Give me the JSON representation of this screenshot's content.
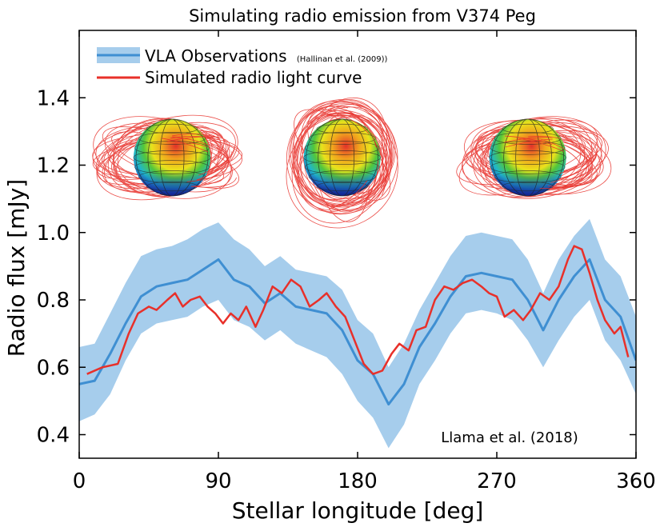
{
  "chart_data": {
    "type": "line",
    "title": "Simulating radio emission from V374 Peg",
    "xlabel": "Stellar longitude [deg]",
    "ylabel": "Radio flux [mJy]",
    "xlim": [
      0,
      360
    ],
    "ylim": [
      0.33,
      1.6
    ],
    "xticks": [
      0,
      90,
      180,
      270,
      360
    ],
    "yticks": [
      0.4,
      0.6,
      0.8,
      1.0,
      1.2,
      1.4
    ],
    "grid": false,
    "legend_position": "top-left",
    "annotation": "Llama et al. (2018)",
    "series": [
      {
        "name": "VLA Observations",
        "name_suffix": "(Hallinan et al. (2009))",
        "color": "#3f8fd2",
        "band_color": "#a6cdec",
        "x": [
          0,
          10,
          20,
          30,
          40,
          50,
          60,
          70,
          80,
          90,
          100,
          110,
          120,
          130,
          140,
          150,
          160,
          170,
          180,
          190,
          200,
          210,
          220,
          230,
          240,
          250,
          260,
          270,
          280,
          290,
          300,
          310,
          320,
          330,
          340,
          350,
          360
        ],
        "values": [
          0.55,
          0.56,
          0.64,
          0.73,
          0.81,
          0.84,
          0.85,
          0.86,
          0.89,
          0.92,
          0.86,
          0.84,
          0.79,
          0.82,
          0.78,
          0.77,
          0.76,
          0.71,
          0.62,
          0.58,
          0.49,
          0.55,
          0.66,
          0.73,
          0.81,
          0.87,
          0.88,
          0.87,
          0.86,
          0.8,
          0.71,
          0.8,
          0.87,
          0.92,
          0.8,
          0.75,
          0.62
        ],
        "lower": [
          0.44,
          0.46,
          0.52,
          0.62,
          0.7,
          0.73,
          0.74,
          0.75,
          0.78,
          0.8,
          0.74,
          0.72,
          0.68,
          0.71,
          0.67,
          0.65,
          0.63,
          0.58,
          0.5,
          0.45,
          0.36,
          0.43,
          0.55,
          0.62,
          0.7,
          0.76,
          0.77,
          0.76,
          0.74,
          0.68,
          0.6,
          0.68,
          0.75,
          0.8,
          0.68,
          0.62,
          0.52
        ],
        "upper": [
          0.66,
          0.67,
          0.76,
          0.85,
          0.93,
          0.95,
          0.96,
          0.98,
          1.01,
          1.03,
          0.98,
          0.95,
          0.9,
          0.93,
          0.89,
          0.88,
          0.87,
          0.83,
          0.74,
          0.7,
          0.6,
          0.67,
          0.77,
          0.85,
          0.93,
          0.99,
          1.0,
          0.99,
          0.98,
          0.92,
          0.82,
          0.92,
          0.99,
          1.04,
          0.92,
          0.87,
          0.75
        ]
      },
      {
        "name": "Simulated radio light curve",
        "color": "#e8302a",
        "x": [
          5,
          15,
          25,
          32,
          38,
          45,
          50,
          57,
          62,
          67,
          72,
          78,
          83,
          88,
          93,
          98,
          103,
          108,
          114,
          119,
          125,
          131,
          137,
          143,
          149,
          155,
          160,
          166,
          172,
          178,
          184,
          190,
          196,
          202,
          207,
          213,
          218,
          224,
          230,
          236,
          242,
          248,
          254,
          260,
          265,
          270,
          275,
          281,
          287,
          292,
          298,
          304,
          310,
          316,
          320,
          325,
          330,
          335,
          340,
          346,
          350,
          355
        ],
        "values": [
          0.58,
          0.6,
          0.61,
          0.7,
          0.76,
          0.78,
          0.77,
          0.8,
          0.82,
          0.78,
          0.8,
          0.81,
          0.78,
          0.76,
          0.73,
          0.76,
          0.74,
          0.78,
          0.72,
          0.77,
          0.84,
          0.82,
          0.86,
          0.84,
          0.78,
          0.8,
          0.82,
          0.78,
          0.75,
          0.68,
          0.61,
          0.58,
          0.59,
          0.64,
          0.67,
          0.65,
          0.71,
          0.72,
          0.8,
          0.84,
          0.83,
          0.85,
          0.86,
          0.84,
          0.82,
          0.81,
          0.75,
          0.77,
          0.74,
          0.77,
          0.82,
          0.8,
          0.84,
          0.92,
          0.96,
          0.95,
          0.88,
          0.8,
          0.74,
          0.7,
          0.72,
          0.63
        ]
      }
    ],
    "insets": [
      {
        "type": "stellar-magnetic-field-model",
        "longitude": 60
      },
      {
        "type": "stellar-magnetic-field-model",
        "longitude": 170
      },
      {
        "type": "stellar-magnetic-field-model",
        "longitude": 290
      }
    ]
  }
}
